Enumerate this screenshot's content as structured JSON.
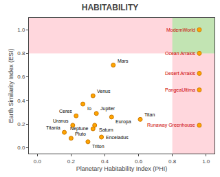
{
  "chart_data": {
    "type": "scatter",
    "title": "HABITABILITY",
    "xlabel": "Planetary Habitability Index (PHI)",
    "ylabel": "Earth Similarity Index (ESI)",
    "xlim": [
      -0.05,
      1.05
    ],
    "ylim": [
      -0.05,
      1.1
    ],
    "xticks": [
      {
        "value": 0,
        "label": "0.0"
      },
      0.2,
      0.4,
      0.6,
      0.8,
      {
        "value": 1,
        "label": "1.0"
      }
    ],
    "yticks": [
      {
        "value": 0,
        "label": "0.0"
      },
      0.2,
      0.4,
      0.6,
      0.8,
      {
        "value": 1,
        "label": "1.0"
      }
    ],
    "grid": false,
    "esi_threshold": 0.8,
    "phi_threshold": 0.8,
    "region_color": "#FFB6C1",
    "overlap_color": "#90EE90",
    "marker_color": "#FFA500",
    "marker_edge_color": "#CC7700",
    "text_color_fictional": "#CC0000",
    "text_color_real": "#000000",
    "points": [
      {
        "name": "Mars",
        "x": 0.45,
        "y": 0.7,
        "fictional": false
      },
      {
        "name": "Venus",
        "x": 0.33,
        "y": 0.44,
        "fictional": false
      },
      {
        "name": "Io",
        "x": 0.27,
        "y": 0.37,
        "fictional": false
      },
      {
        "name": "Ceres",
        "x": 0.23,
        "y": 0.27,
        "fictional": false
      },
      {
        "name": "Jupiter",
        "x": 0.35,
        "y": 0.29,
        "fictional": false
      },
      {
        "name": "Europa",
        "x": 0.44,
        "y": 0.26,
        "fictional": false
      },
      {
        "name": "Saturn",
        "x": 0.34,
        "y": 0.19,
        "fictional": false
      },
      {
        "name": "Uranus",
        "x": 0.21,
        "y": 0.19,
        "fictional": false
      },
      {
        "name": "Titania",
        "x": 0.16,
        "y": 0.13,
        "fictional": false
      },
      {
        "name": "Pluto",
        "x": 0.2,
        "y": 0.08,
        "fictional": false
      },
      {
        "name": "Neptune",
        "x": 0.33,
        "y": 0.16,
        "fictional": false
      },
      {
        "name": "Triton",
        "x": 0.3,
        "y": 0.05,
        "fictional": false
      },
      {
        "name": "Enceladus",
        "x": 0.38,
        "y": 0.09,
        "fictional": false
      },
      {
        "name": "Titan",
        "x": 0.61,
        "y": 0.24,
        "fictional": false
      },
      {
        "name": "ModernWorld",
        "x": 0.96,
        "y": 1.0,
        "fictional": true
      },
      {
        "name": "Ocean Arrakis",
        "x": 0.96,
        "y": 0.8,
        "fictional": true
      },
      {
        "name": "Desert Arrakis",
        "x": 0.96,
        "y": 0.63,
        "fictional": true
      },
      {
        "name": "PangeaUltima",
        "x": 0.96,
        "y": 0.49,
        "fictional": true
      },
      {
        "name": "Runaway Greenhouse",
        "x": 0.96,
        "y": 0.19,
        "fictional": true
      }
    ]
  }
}
